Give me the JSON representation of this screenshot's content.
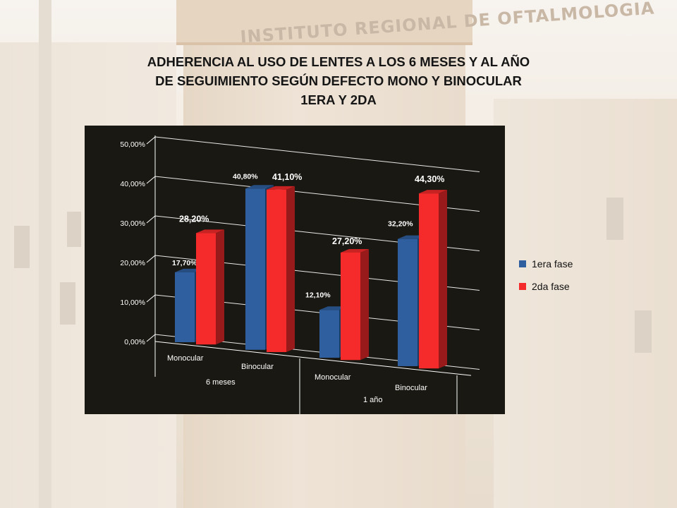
{
  "colors": {
    "series1": "#2f5f9e",
    "series2": "#f52a2a",
    "chart_bg": "#1a1812"
  },
  "chart_data": {
    "type": "bar",
    "title": "ADHERENCIA AL USO DE LENTES A LOS 6 MESES Y AL AÑO DE SEGUIMIENTO SEGÚN DEFECTO MONO Y BINOCULAR 1ERA Y 2DA",
    "title_lines": [
      "ADHERENCIA AL USO DE LENTES A LOS 6 MESES Y AL AÑO",
      "DE SEGUIMIENTO SEGÚN DEFECTO MONO Y BINOCULAR",
      "1ERA Y 2DA"
    ],
    "categories": [
      "Monocular",
      "Binocular",
      "Monocular",
      "Binocular"
    ],
    "groups": [
      {
        "label": "6 meses",
        "span": 2
      },
      {
        "label": "1 año",
        "span": 2
      }
    ],
    "series": [
      {
        "name": "1era fase",
        "values": [
          17.7,
          40.8,
          12.1,
          32.2
        ],
        "labels": [
          "17,70%",
          "40,80%",
          "12,10%",
          "32,20%"
        ]
      },
      {
        "name": "2da fase",
        "values": [
          28.2,
          41.1,
          27.2,
          44.3
        ],
        "labels": [
          "28,20%",
          "41,10%",
          "27,20%",
          "44,30%"
        ]
      }
    ],
    "ylim": [
      0,
      50
    ],
    "yticks": [
      "0,00%",
      "10,00%",
      "20,00%",
      "30,00%",
      "40,00%",
      "50,00%"
    ],
    "grid": true,
    "three_d": true,
    "legend_position": "right"
  }
}
